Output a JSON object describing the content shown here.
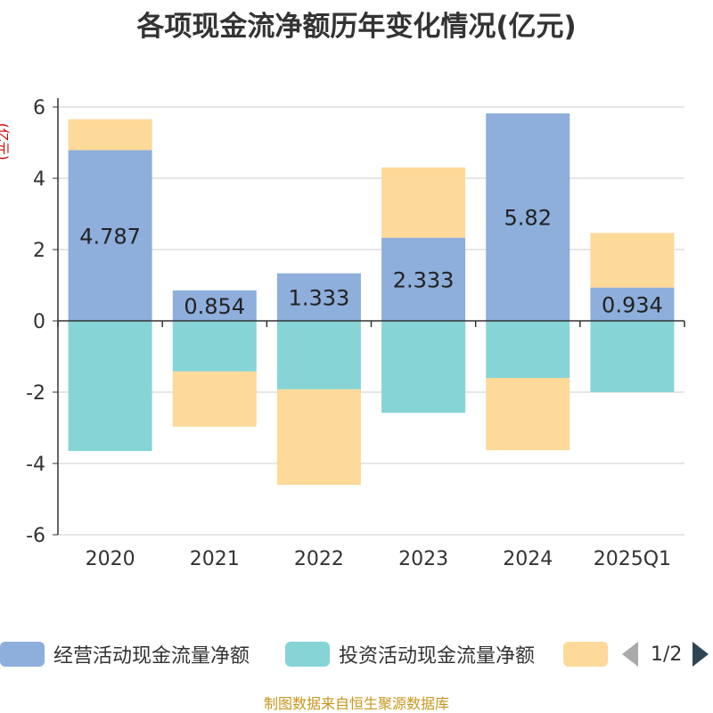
{
  "title": "各项现金流净额历年变化情况(亿元)",
  "unit_label": "(亿元)",
  "source": "制图数据来自恒生聚源数据库",
  "pager": {
    "text": "1/2"
  },
  "colors": {
    "operating": "#8eaedb",
    "investing": "#86d4d6",
    "financing": "#fdd99a",
    "axis": "#333333",
    "grid": "#cccccc"
  },
  "chart_data": {
    "type": "bar",
    "stacked": true,
    "categories": [
      "2020",
      "2021",
      "2022",
      "2023",
      "2024",
      "2025Q1"
    ],
    "ylim": [
      -6,
      6
    ],
    "yticks": [
      "6",
      "4",
      "2",
      "0",
      "-2",
      "-4",
      "-6"
    ],
    "series": [
      {
        "name": "经营活动现金流量净额",
        "color": "#8eaedb",
        "values": [
          4.787,
          0.854,
          1.333,
          2.333,
          5.82,
          0.934
        ],
        "labels": [
          "4.787",
          "0.854",
          "1.333",
          "2.333",
          "5.82",
          "0.934"
        ]
      },
      {
        "name": "投资活动现金流量净额",
        "color": "#86d4d6",
        "values": [
          -3.65,
          -1.42,
          -1.92,
          -2.58,
          -1.6,
          -2.0
        ]
      },
      {
        "name": "",
        "color": "#fdd99a",
        "values": [
          0.87,
          -1.55,
          -2.68,
          1.97,
          -2.03,
          1.53
        ]
      }
    ],
    "legend_position": "bottom",
    "grid": true
  }
}
